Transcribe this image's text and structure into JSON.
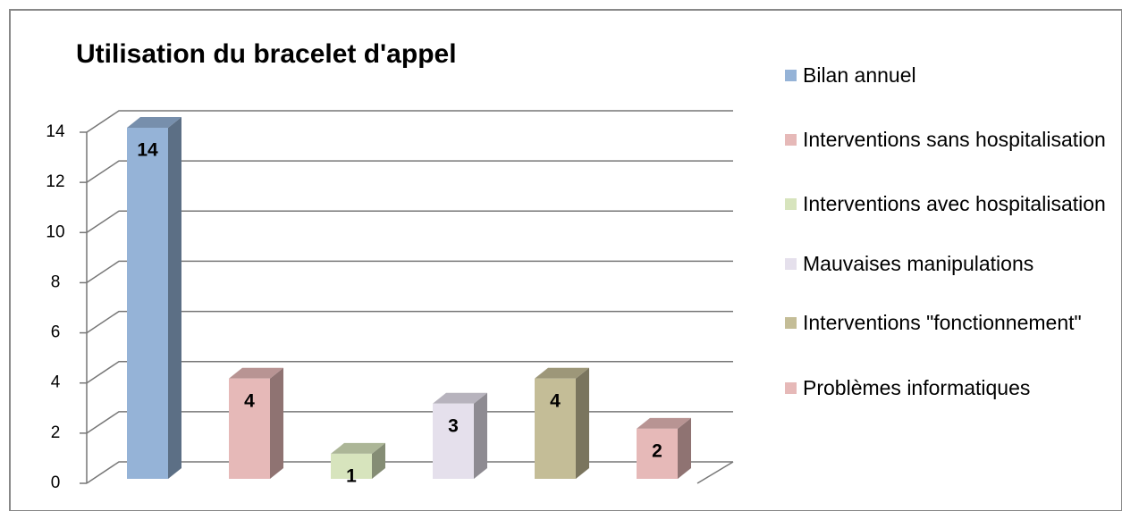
{
  "chart_data": {
    "type": "bar3d",
    "title": "Utilisation du bracelet d'appel",
    "series": [
      {
        "name": "Bilan annuel",
        "color": "#95b3d7",
        "values": [
          14
        ]
      },
      {
        "name": "Interventions sans hospitalisation",
        "color": "#e6b9b8",
        "values": [
          4
        ]
      },
      {
        "name": "Interventions avec hospitalisation",
        "color": "#d7e4bd",
        "values": [
          1
        ]
      },
      {
        "name": "Mauvaises manipulations",
        "color": "#e5e0ec",
        "values": [
          3
        ]
      },
      {
        "name": "Interventions \"fonctionnement\"",
        "color": "#c4bd97",
        "values": [
          4
        ]
      },
      {
        "name": "Problèmes informatiques",
        "color": "#e6b9b8",
        "values": [
          2
        ]
      }
    ],
    "ylim": [
      0,
      14
    ],
    "yticks": [
      0,
      2,
      4,
      6,
      8,
      10,
      12,
      14
    ],
    "grid": true,
    "legend": "right"
  }
}
